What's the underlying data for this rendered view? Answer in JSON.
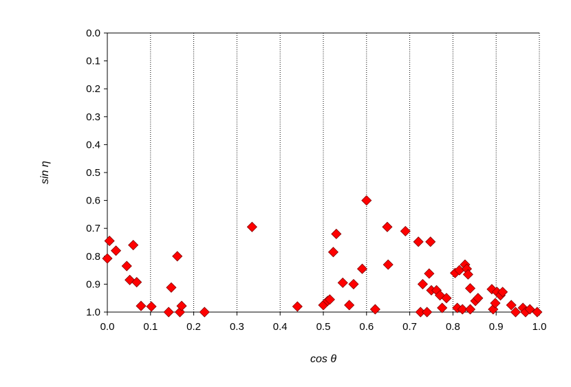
{
  "chart_data": {
    "type": "scatter",
    "title": "",
    "xlabel": "cos θ",
    "ylabel": "sin η",
    "xlim": [
      0.0,
      1.0
    ],
    "ylim": [
      0.0,
      1.0
    ],
    "y_axis_inverted": true,
    "x_ticks": [
      "0.0",
      "0.1",
      "0.2",
      "0.3",
      "0.4",
      "0.5",
      "0.6",
      "0.7",
      "0.8",
      "0.9",
      "1.0"
    ],
    "y_ticks": [
      "0.0",
      "0.1",
      "0.2",
      "0.3",
      "0.4",
      "0.5",
      "0.6",
      "0.7",
      "0.8",
      "0.9",
      "1.0"
    ],
    "vertical_grid": true,
    "grid_style": "dotted",
    "marker": "diamond",
    "marker_color": "#ff0000",
    "series": [
      {
        "points": [
          [
            0.005,
            0.745
          ],
          [
            0.0,
            0.808
          ],
          [
            0.02,
            0.78
          ],
          [
            0.045,
            0.835
          ],
          [
            0.052,
            0.885
          ],
          [
            0.06,
            0.76
          ],
          [
            0.068,
            0.893
          ],
          [
            0.078,
            0.978
          ],
          [
            0.102,
            0.98
          ],
          [
            0.142,
            1.0
          ],
          [
            0.148,
            0.912
          ],
          [
            0.162,
            0.8
          ],
          [
            0.168,
            1.0
          ],
          [
            0.172,
            0.978
          ],
          [
            0.225,
            1.0
          ],
          [
            0.335,
            0.695
          ],
          [
            0.44,
            0.98
          ],
          [
            0.5,
            0.975
          ],
          [
            0.51,
            0.96
          ],
          [
            0.515,
            0.955
          ],
          [
            0.523,
            0.785
          ],
          [
            0.53,
            0.72
          ],
          [
            0.545,
            0.895
          ],
          [
            0.56,
            0.975
          ],
          [
            0.57,
            0.9
          ],
          [
            0.59,
            0.845
          ],
          [
            0.6,
            0.6
          ],
          [
            0.62,
            0.99
          ],
          [
            0.648,
            0.695
          ],
          [
            0.65,
            0.83
          ],
          [
            0.69,
            0.71
          ],
          [
            0.72,
            0.748
          ],
          [
            0.725,
            1.0
          ],
          [
            0.73,
            0.9
          ],
          [
            0.74,
            1.0
          ],
          [
            0.745,
            0.862
          ],
          [
            0.748,
            0.748
          ],
          [
            0.75,
            0.922
          ],
          [
            0.762,
            0.922
          ],
          [
            0.77,
            0.94
          ],
          [
            0.775,
            0.985
          ],
          [
            0.785,
            0.95
          ],
          [
            0.805,
            0.86
          ],
          [
            0.81,
            0.985
          ],
          [
            0.815,
            0.85
          ],
          [
            0.822,
            0.99
          ],
          [
            0.828,
            0.83
          ],
          [
            0.832,
            0.845
          ],
          [
            0.835,
            0.865
          ],
          [
            0.84,
            0.915
          ],
          [
            0.84,
            0.99
          ],
          [
            0.852,
            0.96
          ],
          [
            0.858,
            0.95
          ],
          [
            0.89,
            0.918
          ],
          [
            0.893,
            0.99
          ],
          [
            0.898,
            0.968
          ],
          [
            0.902,
            0.928
          ],
          [
            0.91,
            0.94
          ],
          [
            0.915,
            0.928
          ],
          [
            0.935,
            0.975
          ],
          [
            0.945,
            1.0
          ],
          [
            0.962,
            0.985
          ],
          [
            0.968,
            1.0
          ],
          [
            0.978,
            0.99
          ],
          [
            0.995,
            1.0
          ]
        ]
      }
    ]
  }
}
